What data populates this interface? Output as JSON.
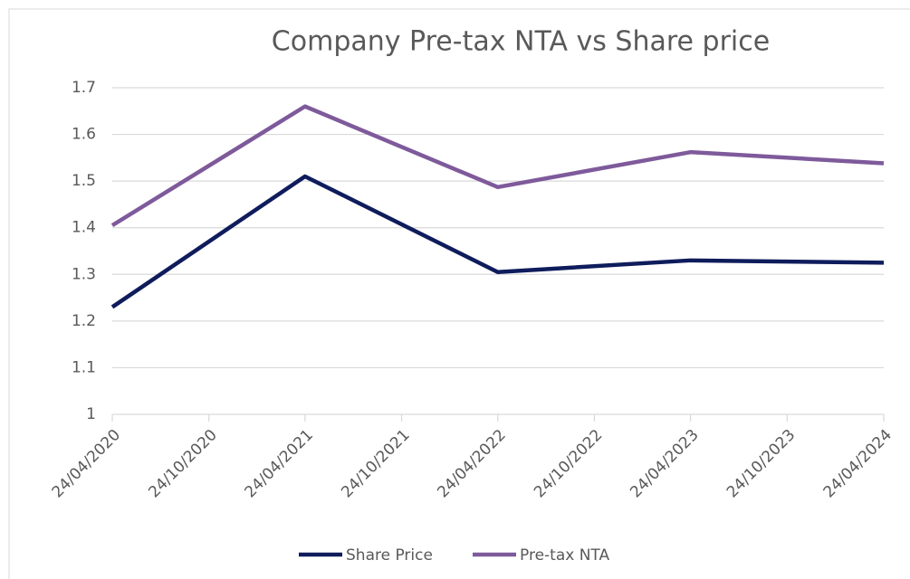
{
  "chart_data": {
    "type": "line",
    "title": "Company Pre-tax NTA vs Share price",
    "x": [
      "24/04/2020",
      "24/04/2021",
      "24/04/2022",
      "24/04/2023",
      "24/04/2024"
    ],
    "series": [
      {
        "name": "Share Price",
        "color": "#0f1c5c",
        "values": [
          1.23,
          1.51,
          1.305,
          1.33,
          1.325
        ]
      },
      {
        "name": "Pre-tax NTA",
        "color": "#7e5a9b",
        "values": [
          1.405,
          1.66,
          1.487,
          1.562,
          1.538
        ]
      }
    ],
    "xlim": [
      "24/04/2020",
      "24/04/2024"
    ],
    "xticks": [
      "24/04/2020",
      "24/10/2020",
      "24/04/2021",
      "24/10/2021",
      "24/04/2022",
      "24/10/2022",
      "24/04/2023",
      "24/10/2023",
      "24/04/2024"
    ],
    "ylim": [
      1,
      1.7
    ],
    "yticks": [
      1,
      1.1,
      1.2,
      1.3,
      1.4,
      1.5,
      1.6,
      1.7
    ],
    "grid": true,
    "legend": "bottom"
  }
}
